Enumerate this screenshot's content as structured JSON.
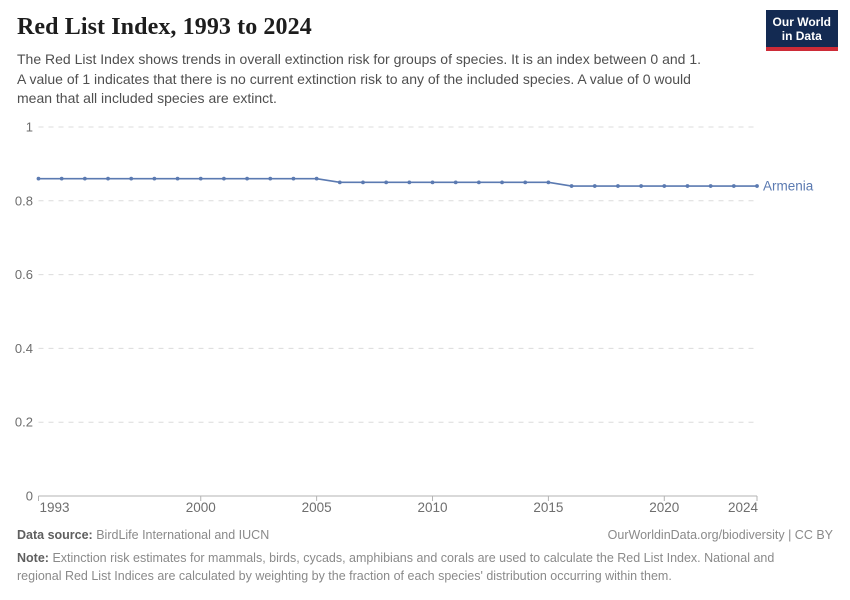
{
  "header": {
    "title": "Red List Index, 1993 to 2024",
    "subtitle_lines": [
      "The Red List Index shows trends in overall extinction risk for groups of species. It is an index between 0 and 1.",
      "A value of 1 indicates that there is no current extinction risk to any of the included species. A value of 0 would",
      "mean that all included species are extinct."
    ],
    "logo": {
      "line1": "Our World",
      "line2": "in Data"
    }
  },
  "chart_data": {
    "type": "line",
    "title": "Red List Index, 1993 to 2024",
    "xlabel": "",
    "ylabel": "",
    "xlim": [
      1993,
      2024
    ],
    "ylim": [
      0,
      1
    ],
    "grid": "horizontal-dashed",
    "legend_position": "end-of-line",
    "xticks": [
      1993,
      2000,
      2005,
      2010,
      2015,
      2020,
      2024
    ],
    "yticks": [
      [
        0,
        "0"
      ],
      [
        0.2,
        "0.2"
      ],
      [
        0.4,
        "0.4"
      ],
      [
        0.6,
        "0.6"
      ],
      [
        0.8,
        "0.8"
      ],
      [
        1,
        "1"
      ]
    ],
    "x": [
      1993,
      1994,
      1995,
      1996,
      1997,
      1998,
      1999,
      2000,
      2001,
      2002,
      2003,
      2004,
      2005,
      2006,
      2007,
      2008,
      2009,
      2010,
      2011,
      2012,
      2013,
      2014,
      2015,
      2016,
      2017,
      2018,
      2019,
      2020,
      2021,
      2022,
      2023,
      2024
    ],
    "series": [
      {
        "name": "Armenia",
        "color": "#5b7ab1",
        "values": [
          0.86,
          0.86,
          0.86,
          0.86,
          0.86,
          0.86,
          0.86,
          0.86,
          0.86,
          0.86,
          0.86,
          0.86,
          0.86,
          0.85,
          0.85,
          0.85,
          0.85,
          0.85,
          0.85,
          0.85,
          0.85,
          0.85,
          0.85,
          0.84,
          0.84,
          0.84,
          0.84,
          0.84,
          0.84,
          0.84,
          0.84,
          0.84
        ]
      }
    ],
    "colors": {
      "grid": "#dcdcdc",
      "axis": "#b3b3b3",
      "tick_label": "#6e6e6e"
    }
  },
  "footer": {
    "datasource_label": "Data source:",
    "datasource_value": "BirdLife International and IUCN",
    "license_link": "OurWorldinData.org/biodiversity | CC BY",
    "note_label": "Note:",
    "note_lines": [
      "Extinction risk estimates for mammals, birds, cycads, amphibians and corals are used to calculate the Red List Index. National and",
      "regional Red List Indices are calculated by weighting by the fraction of each species' distribution occurring within them."
    ]
  }
}
